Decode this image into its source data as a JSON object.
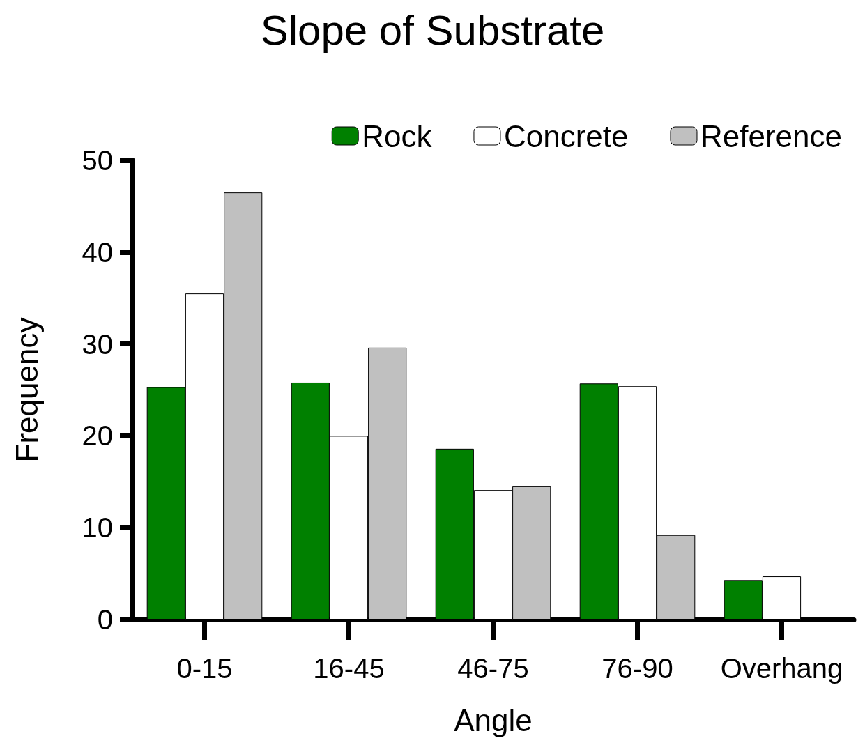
{
  "chart_data": {
    "type": "bar",
    "title": "Slope of Substrate",
    "xlabel": "Angle",
    "ylabel": "Frequency",
    "categories": [
      "0-15",
      "16-45",
      "46-75",
      "76-90",
      "Overhang"
    ],
    "series": [
      {
        "name": "Rock",
        "color": "#008000",
        "values": [
          25.3,
          25.8,
          18.6,
          25.7,
          4.3
        ]
      },
      {
        "name": "Concrete",
        "color": "#ffffff",
        "values": [
          35.5,
          20.0,
          14.1,
          25.4,
          4.7
        ]
      },
      {
        "name": "Reference",
        "color": "#c0c0c0",
        "values": [
          46.5,
          29.6,
          14.5,
          9.2,
          null
        ]
      }
    ],
    "ylim": [
      0,
      50
    ],
    "yticks": [
      0,
      10,
      20,
      30,
      40,
      50
    ],
    "grid": false,
    "legend": "top right"
  }
}
